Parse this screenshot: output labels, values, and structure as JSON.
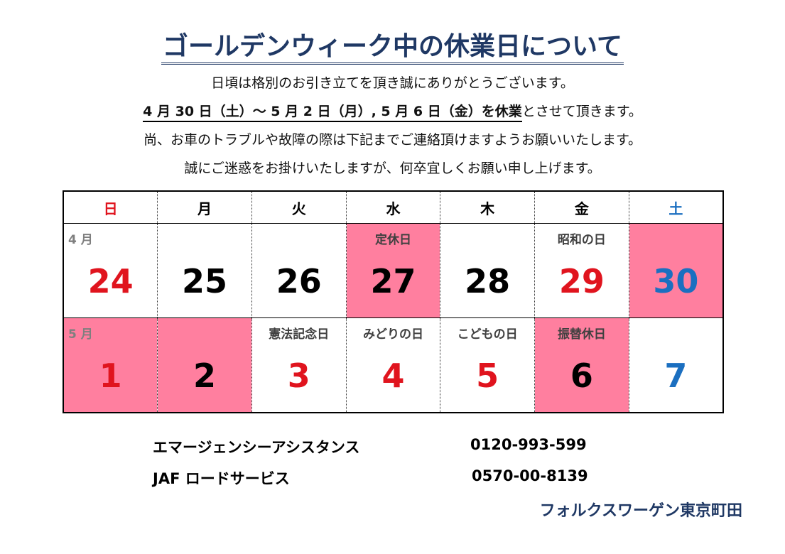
{
  "title": "ゴールデンウィーク中の休業日について",
  "intro": {
    "line1": "日頃は格別のお引き立てを頂き誠にありがとうございます。",
    "line2_bold": "4 月 30 日（土）～ 5 月 2 日（月）, 5 月 6 日（金）を休業",
    "line2_rest": "とさせて頂きます。",
    "line3": "尚、お車のトラブルや故障の際は下記までご連絡頂けますようお願いいたします。",
    "line4": "誠にご迷惑をお掛けいたしますが、何卒宜しくお願い申し上げます。"
  },
  "calendar": {
    "weekdays": [
      "日",
      "月",
      "火",
      "水",
      "木",
      "金",
      "土"
    ],
    "week1": {
      "month": "4 月",
      "days": [
        "24",
        "25",
        "26",
        "27",
        "28",
        "29",
        "30"
      ],
      "labels": [
        "",
        "",
        "",
        "定休日",
        "",
        "昭和の日",
        ""
      ]
    },
    "week2": {
      "month": "5 月",
      "days": [
        "1",
        "2",
        "3",
        "4",
        "5",
        "6",
        "7"
      ],
      "labels": [
        "",
        "",
        "憲法記念日",
        "みどりの日",
        "こどもの日",
        "振替休日",
        ""
      ]
    },
    "colors": {
      "closed_highlight": "#ff7f9f",
      "holiday_red": "#e0141e",
      "saturday_blue": "#1b6fc0"
    }
  },
  "contacts": [
    {
      "name": "エマージェンシーアシスタンス",
      "phone": "0120-993-599"
    },
    {
      "name": "JAF ロードサービス",
      "phone": "0570-00-8139"
    }
  ],
  "footer": "フォルクスワーゲン東京町田"
}
